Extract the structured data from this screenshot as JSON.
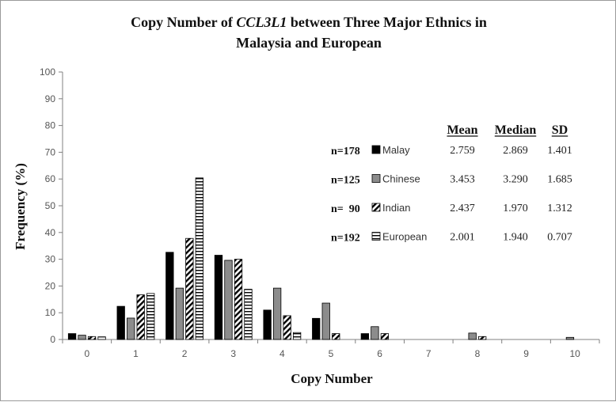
{
  "chart_data": {
    "type": "bar",
    "title_pre": "Copy Number of ",
    "title_gene": "CCL3L1",
    "title_post": " between Three Major Ethnics in",
    "title_line2": "Malaysia and European",
    "xlabel": "Copy Number",
    "ylabel": "Frequency  (%)",
    "ylim": [
      0,
      100
    ],
    "yticks": [
      0,
      10,
      20,
      30,
      40,
      50,
      60,
      70,
      80,
      90,
      100
    ],
    "categories": [
      "0",
      "1",
      "2",
      "3",
      "4",
      "5",
      "6",
      "7",
      "8",
      "9",
      "10"
    ],
    "series": [
      {
        "name": "Malay",
        "n_label": "n=178",
        "fill": "solid",
        "color": "#000000",
        "values": [
          2.2,
          12.4,
          32.6,
          31.5,
          11.0,
          7.9,
          2.2,
          0,
          0,
          0,
          0
        ],
        "mean": "2.759",
        "median": "2.869",
        "sd": "1.401"
      },
      {
        "name": "Chinese",
        "n_label": "n=125",
        "fill": "gray",
        "color": "#8c8c8c",
        "values": [
          1.6,
          8.0,
          19.2,
          29.6,
          19.2,
          13.6,
          4.8,
          0,
          2.4,
          0,
          0.8
        ],
        "mean": "3.453",
        "median": "3.290",
        "sd": "1.685"
      },
      {
        "name": "Indian",
        "n_label": "n=  90",
        "fill": "diagonal",
        "color": "#000000",
        "values": [
          1.1,
          16.7,
          37.8,
          30.0,
          8.9,
          2.2,
          2.2,
          0,
          1.1,
          0,
          0
        ],
        "mean": "2.437",
        "median": "1.970",
        "sd": "1.312"
      },
      {
        "name": "European",
        "n_label": "n=192",
        "fill": "horizontal",
        "color": "#000000",
        "values": [
          1.0,
          17.2,
          60.4,
          18.8,
          2.6,
          0,
          0,
          0,
          0,
          0,
          0
        ],
        "mean": "2.001",
        "median": "1.940",
        "sd": "0.707"
      }
    ],
    "stats_headers": {
      "mean": "Mean",
      "median": "Median",
      "sd": "SD"
    },
    "legend_placement": "right",
    "grid": false
  }
}
